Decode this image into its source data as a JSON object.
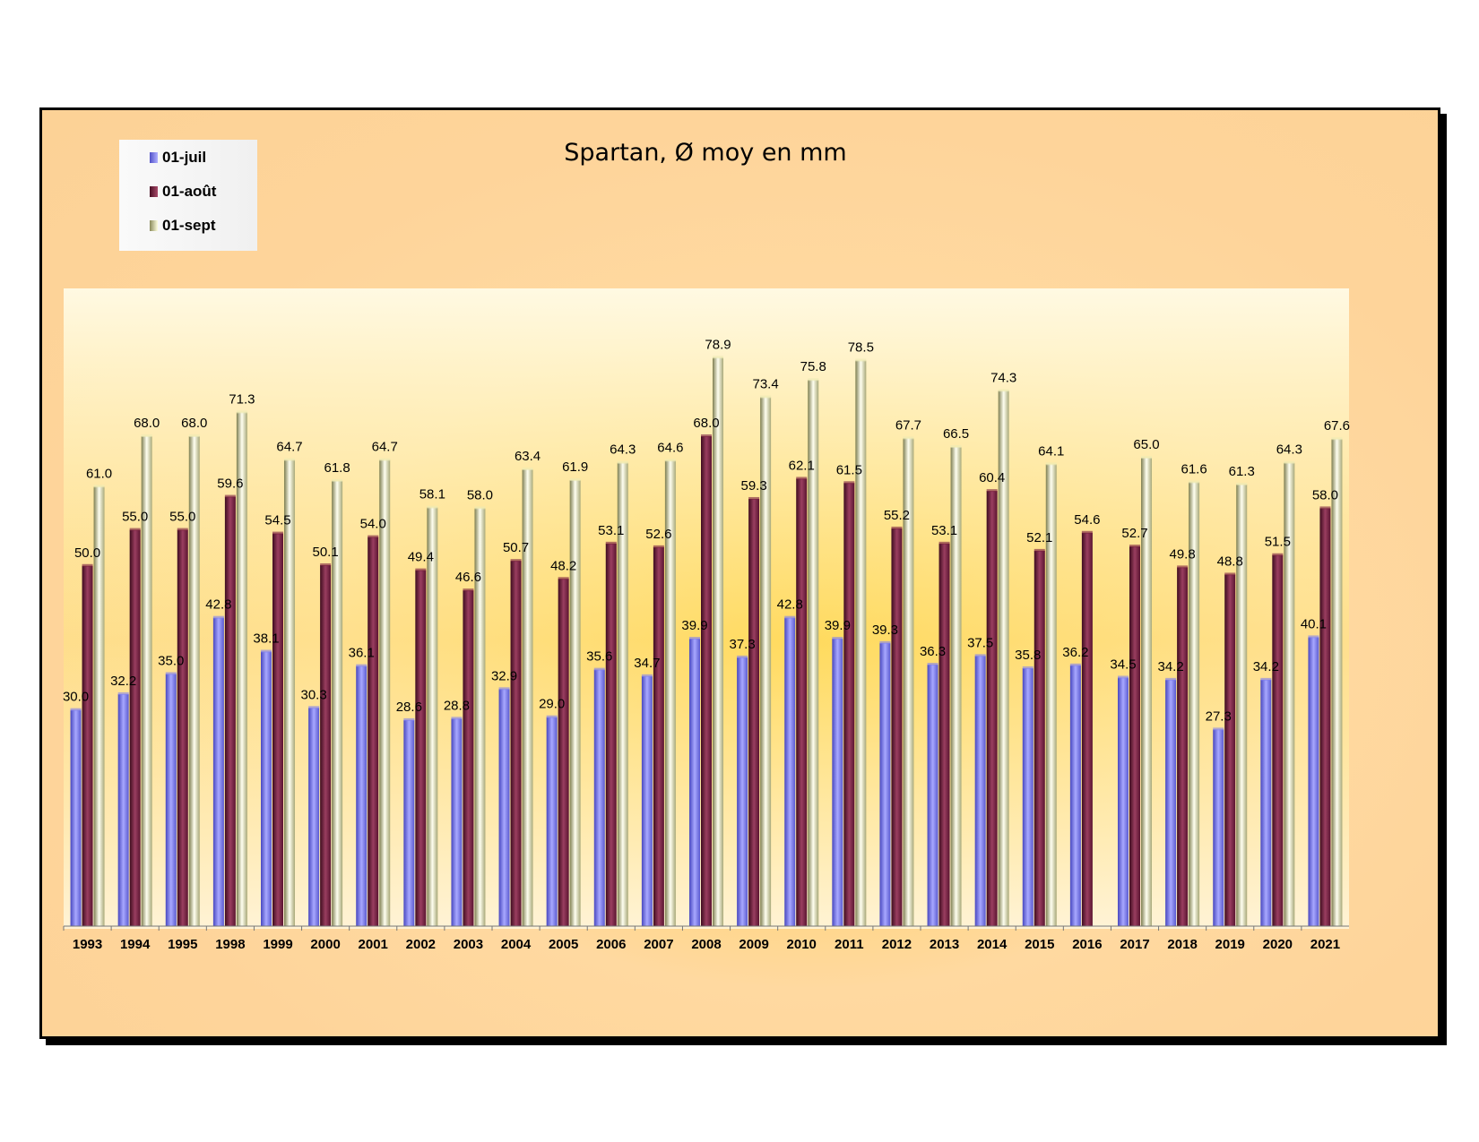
{
  "chart_data": {
    "type": "bar",
    "title": "Spartan, Ø moy en mm",
    "xlabel": "",
    "ylabel": "",
    "ylim": [
      0,
      90
    ],
    "grid": false,
    "legend_position": "top-left",
    "categories": [
      "1993",
      "1994",
      "1995",
      "1998",
      "1999",
      "2000",
      "2001",
      "2002",
      "2003",
      "2004",
      "2005",
      "2006",
      "2007",
      "2008",
      "2009",
      "2010",
      "2011",
      "2012",
      "2013",
      "2014",
      "2015",
      "2016",
      "2017",
      "2018",
      "2019",
      "2020",
      "2021"
    ],
    "series": [
      {
        "name": "01-juil",
        "color": "#8080f0",
        "values": [
          30.0,
          32.2,
          35.0,
          42.8,
          38.1,
          30.3,
          36.1,
          28.6,
          28.8,
          32.9,
          29.0,
          35.6,
          34.7,
          39.9,
          37.3,
          42.8,
          39.9,
          39.3,
          36.3,
          37.5,
          35.8,
          36.2,
          34.5,
          34.2,
          27.3,
          34.2,
          40.1
        ]
      },
      {
        "name": "01-août",
        "color": "#7a1e3e",
        "values": [
          50.0,
          55.0,
          55.0,
          59.6,
          54.5,
          50.1,
          54.0,
          49.4,
          46.6,
          50.7,
          48.2,
          53.1,
          52.6,
          68.0,
          59.3,
          62.1,
          61.5,
          55.2,
          53.1,
          60.4,
          52.1,
          54.6,
          52.7,
          49.8,
          48.8,
          51.5,
          58.0
        ]
      },
      {
        "name": "01-sept",
        "color": "#ecebb4",
        "values": [
          61.0,
          68.0,
          68.0,
          71.3,
          64.7,
          61.8,
          64.7,
          58.1,
          58.0,
          63.4,
          61.9,
          64.3,
          64.6,
          78.9,
          73.4,
          75.8,
          78.5,
          67.7,
          66.5,
          74.3,
          64.1,
          null,
          65.0,
          61.6,
          61.3,
          64.3,
          67.6
        ]
      }
    ]
  }
}
